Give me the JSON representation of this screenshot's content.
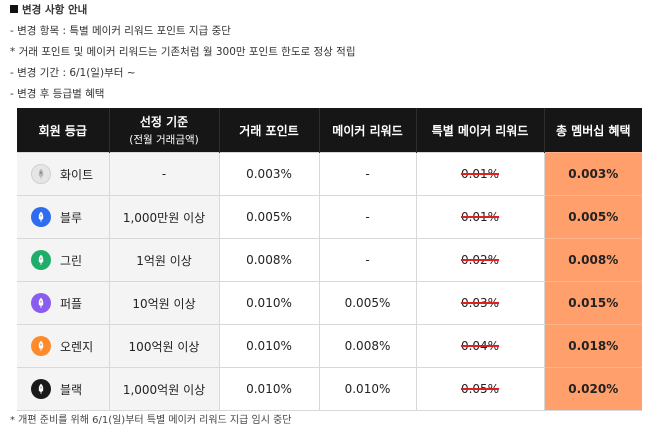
{
  "notice": {
    "heading": "변경 사항 안내",
    "lines": [
      "- 변경 항목 : 특별 메이커 리워드 포인트 지급 중단",
      "* 거래 포인트 및 메이커 리워드는 기존처럼 월 300만 포인트 한도로 정상 적립",
      "- 변경 기간 : 6/1(일)부터 ~",
      "- 변경 후 등급별 혜택"
    ]
  },
  "table": {
    "headers": {
      "grade": "회원 등급",
      "criteria": "선정 기준",
      "criteria_sub": "(전월 거래금액)",
      "trade_points": "거래 포인트",
      "maker_reward": "메이커 리워드",
      "special_reward": "특별 메이커 리워드",
      "total_benefit": "총 멤버십 혜택"
    },
    "rows": [
      {
        "grade": "화이트",
        "icon": "white-grade-icon",
        "color": "#e6e6e6",
        "criteria": "-",
        "trade": "0.003%",
        "maker": "-",
        "special": "0.01%",
        "total": "0.003%"
      },
      {
        "grade": "블루",
        "icon": "blue-grade-icon",
        "color": "#2f6df0",
        "criteria": "1,000만원 이상",
        "trade": "0.005%",
        "maker": "-",
        "special": "0.01%",
        "total": "0.005%"
      },
      {
        "grade": "그린",
        "icon": "green-grade-icon",
        "color": "#1fae6a",
        "criteria": "1억원 이상",
        "trade": "0.008%",
        "maker": "-",
        "special": "0.02%",
        "total": "0.008%"
      },
      {
        "grade": "퍼플",
        "icon": "purple-grade-icon",
        "color": "#8a5cf0",
        "criteria": "10억원 이상",
        "trade": "0.010%",
        "maker": "0.005%",
        "special": "0.03%",
        "total": "0.015%"
      },
      {
        "grade": "오렌지",
        "icon": "orange-grade-icon",
        "color": "#ff8a2a",
        "criteria": "100억원 이상",
        "trade": "0.010%",
        "maker": "0.008%",
        "special": "0.04%",
        "total": "0.018%"
      },
      {
        "grade": "블랙",
        "icon": "black-grade-icon",
        "color": "#1a1a1a",
        "criteria": "1,000억원 이상",
        "trade": "0.010%",
        "maker": "0.010%",
        "special": "0.05%",
        "total": "0.020%"
      }
    ]
  },
  "footnote": "* 개편 준비를 위해 6/1(일)부터 특별 메이커 리워드 지급 임시 중단",
  "colors": {
    "header_bg": "#161616",
    "highlight": "#ff9f6b",
    "strike": "#e02020",
    "cell_bg": "#f4f4f4"
  }
}
